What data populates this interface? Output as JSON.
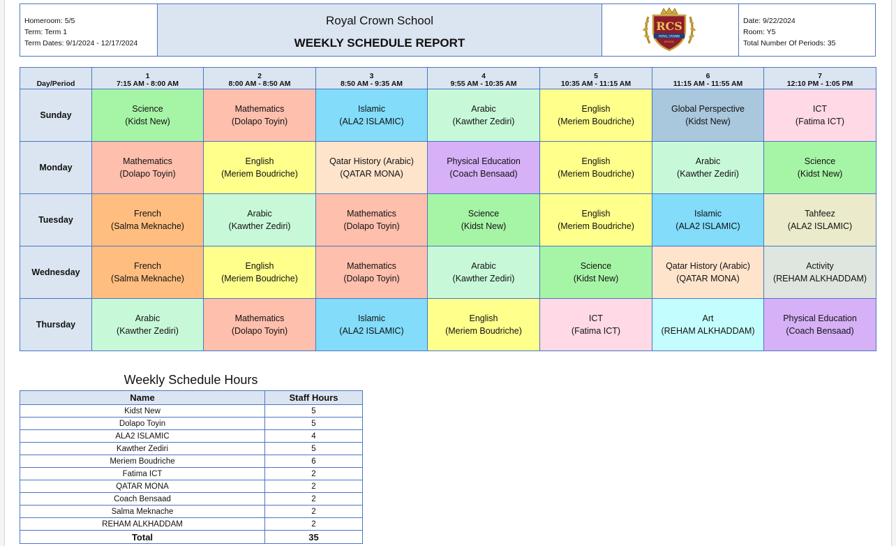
{
  "header": {
    "homeroom": "Homeroom: 5/5",
    "term": "Term: Term 1",
    "term_dates": "Term Dates: 9/1/2024 - 12/17/2024",
    "school_name": "Royal Crown School",
    "report_title": "WEEKLY SCHEDULE REPORT",
    "date": "Date: 9/22/2024",
    "room": "Room: Y5",
    "total_periods": "Total Number Of Periods: 35",
    "logo": {
      "initials": "RCS",
      "text": "ROYAL CROWN SCHOOL"
    }
  },
  "schedule": {
    "corner_label": "Day/Period",
    "periods": [
      {
        "num": "1",
        "time": "7:15 AM - 8:00 AM"
      },
      {
        "num": "2",
        "time": "8:00 AM - 8:50 AM"
      },
      {
        "num": "3",
        "time": "8:50 AM - 9:35 AM"
      },
      {
        "num": "4",
        "time": "9:55 AM - 10:35 AM"
      },
      {
        "num": "5",
        "time": "10:35 AM - 11:15 AM"
      },
      {
        "num": "6",
        "time": "11:15 AM - 11:55 AM"
      },
      {
        "num": "7",
        "time": "12:10 PM - 1:05 PM"
      }
    ],
    "subject_colors": {
      "Science": "#a6f5a6",
      "Mathematics": "#ffbfad",
      "Islamic": "#82dcfa",
      "Arabic": "#c7f9d9",
      "English": "#ffff8c",
      "Global Perspective": "#a9c7dd",
      "ICT": "#ffd9e6",
      "Qatar History (Arabic)": "#ffe4cc",
      "Physical Education": "#d6b1f7",
      "French": "#ffbe80",
      "Tahfeez": "#ebebcc",
      "Activity": "#dfe6df",
      "Art": "#c4fdfd"
    },
    "days": [
      {
        "name": "Sunday",
        "slots": [
          {
            "subject": "Science",
            "teacher": "(Kidst New)"
          },
          {
            "subject": "Mathematics",
            "teacher": "(Dolapo Toyin)"
          },
          {
            "subject": "Islamic",
            "teacher": "(ALA2 ISLAMIC)"
          },
          {
            "subject": "Arabic",
            "teacher": "(Kawther Zediri)"
          },
          {
            "subject": "English",
            "teacher": "(Meriem Boudriche)"
          },
          {
            "subject": "Global Perspective",
            "teacher": "(Kidst New)"
          },
          {
            "subject": "ICT",
            "teacher": "(Fatima ICT)"
          }
        ]
      },
      {
        "name": "Monday",
        "slots": [
          {
            "subject": "Mathematics",
            "teacher": "(Dolapo Toyin)"
          },
          {
            "subject": "English",
            "teacher": "(Meriem Boudriche)"
          },
          {
            "subject": "Qatar History (Arabic)",
            "teacher": "(QATAR MONA)"
          },
          {
            "subject": "Physical Education",
            "teacher": "(Coach Bensaad)"
          },
          {
            "subject": "English",
            "teacher": "(Meriem Boudriche)"
          },
          {
            "subject": "Arabic",
            "teacher": "(Kawther Zediri)"
          },
          {
            "subject": "Science",
            "teacher": "(Kidst New)"
          }
        ]
      },
      {
        "name": "Tuesday",
        "slots": [
          {
            "subject": "French",
            "teacher": "(Salma Meknache)"
          },
          {
            "subject": "Arabic",
            "teacher": "(Kawther Zediri)"
          },
          {
            "subject": "Mathematics",
            "teacher": "(Dolapo Toyin)"
          },
          {
            "subject": "Science",
            "teacher": "(Kidst New)"
          },
          {
            "subject": "English",
            "teacher": "(Meriem Boudriche)"
          },
          {
            "subject": "Islamic",
            "teacher": "(ALA2 ISLAMIC)"
          },
          {
            "subject": "Tahfeez",
            "teacher": "(ALA2 ISLAMIC)"
          }
        ]
      },
      {
        "name": "Wednesday",
        "slots": [
          {
            "subject": "French",
            "teacher": "(Salma Meknache)"
          },
          {
            "subject": "English",
            "teacher": "(Meriem Boudriche)"
          },
          {
            "subject": "Mathematics",
            "teacher": "(Dolapo Toyin)"
          },
          {
            "subject": "Arabic",
            "teacher": "(Kawther Zediri)"
          },
          {
            "subject": "Science",
            "teacher": "(Kidst New)"
          },
          {
            "subject": "Qatar History (Arabic)",
            "teacher": "(QATAR MONA)"
          },
          {
            "subject": "Activity",
            "teacher": "(REHAM ALKHADDAM)"
          }
        ]
      },
      {
        "name": "Thursday",
        "slots": [
          {
            "subject": "Arabic",
            "teacher": "(Kawther Zediri)"
          },
          {
            "subject": "Mathematics",
            "teacher": "(Dolapo Toyin)"
          },
          {
            "subject": "Islamic",
            "teacher": "(ALA2 ISLAMIC)"
          },
          {
            "subject": "English",
            "teacher": "(Meriem Boudriche)"
          },
          {
            "subject": "ICT",
            "teacher": "(Fatima ICT)"
          },
          {
            "subject": "Art",
            "teacher": "(REHAM ALKHADDAM)"
          },
          {
            "subject": "Physical Education",
            "teacher": "(Coach Bensaad)"
          }
        ]
      }
    ]
  },
  "hours": {
    "title": "Weekly Schedule Hours",
    "col_name": "Name",
    "col_hours": "Staff Hours",
    "rows": [
      {
        "name": "Kidst New",
        "hours": "5"
      },
      {
        "name": "Dolapo Toyin",
        "hours": "5"
      },
      {
        "name": "ALA2 ISLAMIC",
        "hours": "4"
      },
      {
        "name": "Kawther Zediri",
        "hours": "5"
      },
      {
        "name": "Meriem Boudriche",
        "hours": "6"
      },
      {
        "name": "Fatima ICT",
        "hours": "2"
      },
      {
        "name": "QATAR MONA",
        "hours": "2"
      },
      {
        "name": "Coach Bensaad",
        "hours": "2"
      },
      {
        "name": "Salma Meknache",
        "hours": "2"
      },
      {
        "name": "REHAM ALKHADDAM",
        "hours": "2"
      }
    ],
    "total_label": "Total",
    "total_value": "35"
  }
}
